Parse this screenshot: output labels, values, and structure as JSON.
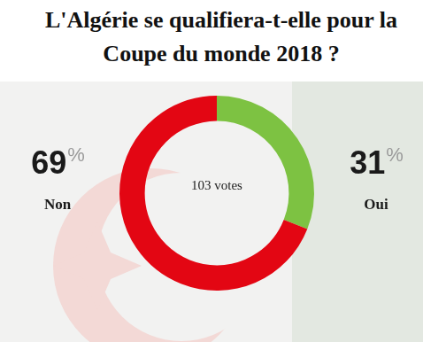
{
  "chart_data": {
    "type": "doughnut",
    "title": "L'Algérie se qualifiera-t-elle pour la Coupe du monde 2018 ?",
    "categories": [
      "Oui",
      "Non"
    ],
    "values": [
      31,
      69
    ],
    "colors": [
      "#7dc242",
      "#e30613"
    ],
    "data_labels": true,
    "value_labels": [
      "31%",
      "69%"
    ],
    "annotations": [
      "103 votes"
    ]
  }
}
